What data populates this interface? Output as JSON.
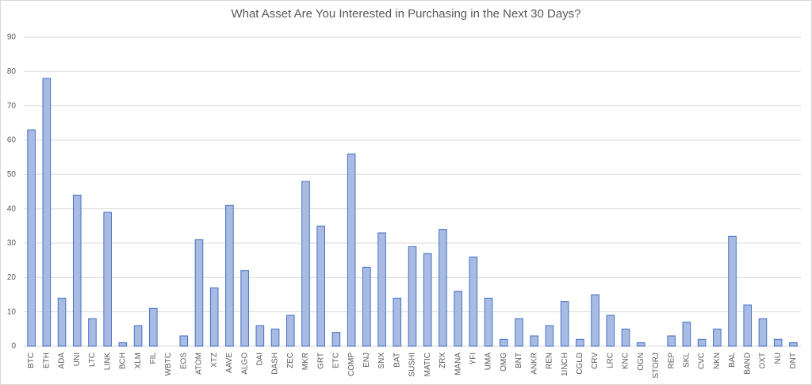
{
  "chart_data": {
    "type": "bar",
    "title": "What Asset Are You Interested in Purchasing in the Next 30 Days?",
    "categories": [
      "BTC",
      "ETH",
      "ADA",
      "UNI",
      "LTC",
      "LINK",
      "BCH",
      "XLM",
      "FIL",
      "WBTC",
      "EOS",
      "ATOM",
      "XTZ",
      "AAVE",
      "ALGO",
      "DAI",
      "DASH",
      "ZEC",
      "MKR",
      "GRT",
      "ETC",
      "COMP",
      "ENJ",
      "SNX",
      "BAT",
      "SUSHI",
      "MATIC",
      "ZRX",
      "MANA",
      "YFI",
      "UMA",
      "OMG",
      "BNT",
      "ANKR",
      "REN",
      "1INCH",
      "CGLD",
      "CRV",
      "LRC",
      "KNC",
      "OGN",
      "STORJ",
      "REP",
      "SKL",
      "CVC",
      "NKN",
      "BAL",
      "BAND",
      "OXT",
      "NU",
      "DNT"
    ],
    "values": [
      63,
      78,
      14,
      44,
      8,
      39,
      1,
      6,
      11,
      0,
      3,
      31,
      17,
      41,
      22,
      6,
      5,
      9,
      48,
      35,
      4,
      56,
      23,
      33,
      14,
      29,
      27,
      34,
      16,
      26,
      14,
      2,
      8,
      3,
      6,
      13,
      2,
      15,
      9,
      5,
      1,
      0,
      3,
      7,
      2,
      5,
      32,
      12,
      8,
      2,
      1
    ],
    "color": "#a9bbe3",
    "edge_color": "#4472c4",
    "ylim": [
      0,
      90
    ],
    "yticks": [
      0,
      10,
      20,
      30,
      40,
      50,
      60,
      70,
      80,
      90
    ],
    "grid": true
  }
}
